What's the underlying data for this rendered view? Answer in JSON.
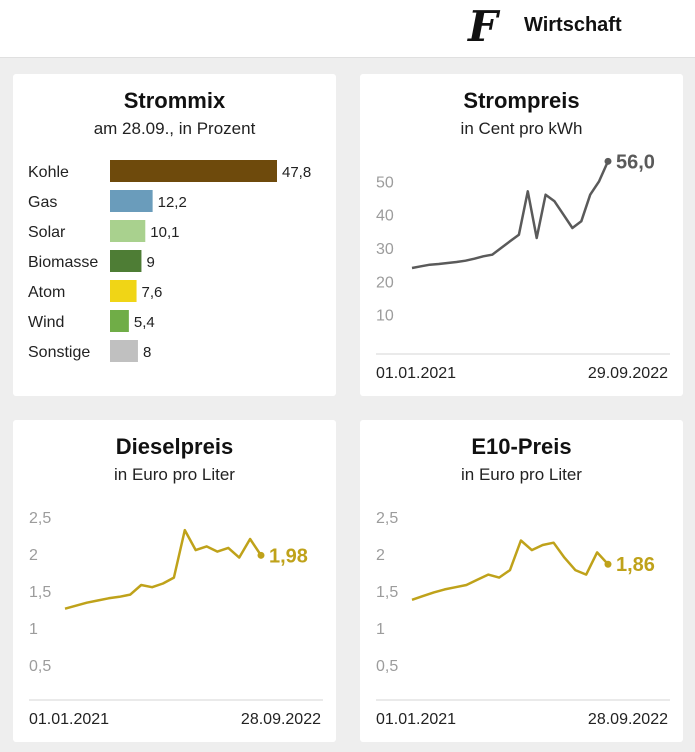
{
  "header": {
    "logo": "F",
    "brand": "Wirtschaft"
  },
  "colors": {
    "coal": "#6e4a0c",
    "gas": "#6a9cbb",
    "solar": "#a9d18e",
    "biomass": "#4e7d35",
    "nuclear": "#f0d516",
    "wind": "#70ad47",
    "other": "#c0c0c0",
    "strompreis_line": "#5a5a5a",
    "fuel_line": "#bfa21a",
    "axis_label": "#9c9c9c"
  },
  "chart_data": [
    {
      "type": "bar",
      "title": "Strommix",
      "subtitle": "am 28.09., in Prozent",
      "categories": [
        "Kohle",
        "Gas",
        "Solar",
        "Biomasse",
        "Atom",
        "Wind",
        "Sonstige"
      ],
      "values": [
        47.8,
        12.2,
        10.1,
        9,
        7.6,
        5.4,
        8
      ],
      "value_labels": [
        "47,8",
        "12,2",
        "10,1",
        "9",
        "7,6",
        "5,4",
        "8"
      ],
      "xlim": [
        0,
        47.8
      ]
    },
    {
      "type": "line",
      "title": "Strompreis",
      "subtitle": "in Cent pro kWh",
      "x_start": "01.01.2021",
      "x_end": "29.09.2022",
      "yticks": [
        "10",
        "20",
        "30",
        "40",
        "50"
      ],
      "ylim": [
        0,
        60
      ],
      "end_label": "56,0",
      "series": [
        {
          "values": [
            24,
            24.5,
            25,
            25.2,
            25.5,
            25.8,
            26.2,
            26.8,
            27.5,
            28,
            30,
            32,
            34,
            47,
            33,
            46,
            44,
            40,
            36,
            38,
            46,
            50,
            56
          ]
        }
      ]
    },
    {
      "type": "line",
      "title": "Dieselpreis",
      "subtitle": "in Euro pro Liter",
      "x_start": "01.01.2021",
      "x_end": "28.09.2022",
      "yticks": [
        "0,5",
        "1",
        "1,5",
        "2",
        "2,5"
      ],
      "ylim": [
        0,
        2.7
      ],
      "end_label": "1,98",
      "series": [
        {
          "values": [
            1.26,
            1.3,
            1.34,
            1.37,
            1.4,
            1.42,
            1.45,
            1.58,
            1.55,
            1.6,
            1.68,
            2.32,
            2.05,
            2.1,
            2.03,
            2.08,
            1.95,
            2.2,
            1.98
          ]
        }
      ]
    },
    {
      "type": "line",
      "title": "E10-Preis",
      "subtitle": "in Euro pro Liter",
      "x_start": "01.01.2021",
      "x_end": "28.09.2022",
      "yticks": [
        "0,5",
        "1",
        "1,5",
        "2",
        "2,5"
      ],
      "ylim": [
        0,
        2.7
      ],
      "end_label": "1,86",
      "series": [
        {
          "values": [
            1.38,
            1.43,
            1.48,
            1.52,
            1.55,
            1.58,
            1.65,
            1.72,
            1.68,
            1.78,
            2.18,
            2.05,
            2.12,
            2.15,
            1.95,
            1.78,
            1.72,
            2.02,
            1.86
          ]
        }
      ]
    }
  ]
}
